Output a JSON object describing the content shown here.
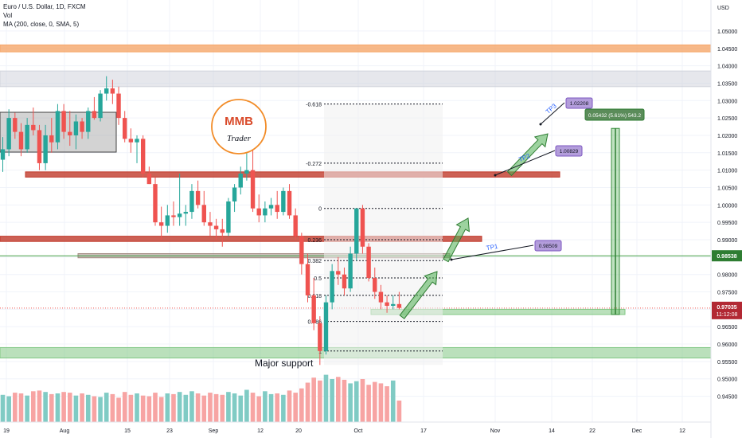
{
  "legend": {
    "symbol": "Euro / U.S. Dollar, 1D, FXCM",
    "volume": "Vol",
    "ma": "MA (200, close, 0, SMA, 5)"
  },
  "logo": {
    "brand": "MMB",
    "sub": "Trader"
  },
  "chart_data": {
    "type": "candlestick",
    "symbol": "Euro / U.S. Dollar",
    "interval": "1D",
    "ylabel": "USD",
    "ylim": [
      0.9425,
      1.0525
    ],
    "y_ticks": [
      "1.05000",
      "1.04500",
      "1.04000",
      "1.03500",
      "1.03000",
      "1.02500",
      "1.02000",
      "1.01500",
      "1.01000",
      "1.00500",
      "1.00000",
      "0.99500",
      "0.99000",
      "0.98500",
      "0.98000",
      "0.97500",
      "0.97000",
      "0.96500",
      "0.96000",
      "0.95500",
      "0.95000",
      "0.94500"
    ],
    "x_ticks": [
      "19",
      "Aug",
      "15",
      "23",
      "Sep",
      "12",
      "20",
      "Oct",
      "17",
      "Nov",
      "14",
      "22",
      "Dec",
      "12"
    ],
    "last_price": {
      "value": "0.97035",
      "timer": "11:12:08",
      "color": "#b22833"
    },
    "level_label": {
      "value": "0.98538",
      "color": "#2e7d32"
    },
    "candles": [
      {
        "o": 1.013,
        "h": 1.0195,
        "l": 1.0095,
        "c": 1.016
      },
      {
        "o": 1.016,
        "h": 1.0275,
        "l": 1.014,
        "c": 1.025
      },
      {
        "o": 1.025,
        "h": 1.0265,
        "l": 1.019,
        "c": 1.021
      },
      {
        "o": 1.021,
        "h": 1.0235,
        "l": 1.014,
        "c": 1.016
      },
      {
        "o": 1.016,
        "h": 1.025,
        "l": 1.015,
        "c": 1.023
      },
      {
        "o": 1.023,
        "h": 1.028,
        "l": 1.02,
        "c": 1.0215
      },
      {
        "o": 1.0215,
        "h": 1.023,
        "l": 1.01,
        "c": 1.012
      },
      {
        "o": 1.012,
        "h": 1.023,
        "l": 1.01,
        "c": 1.02
      },
      {
        "o": 1.02,
        "h": 1.025,
        "l": 1.015,
        "c": 1.018
      },
      {
        "o": 1.018,
        "h": 1.029,
        "l": 1.016,
        "c": 1.027
      },
      {
        "o": 1.027,
        "h": 1.029,
        "l": 1.019,
        "c": 1.021
      },
      {
        "o": 1.021,
        "h": 1.027,
        "l": 1.017,
        "c": 1.02
      },
      {
        "o": 1.02,
        "h": 1.026,
        "l": 1.016,
        "c": 1.024
      },
      {
        "o": 1.024,
        "h": 1.025,
        "l": 1.019,
        "c": 1.021
      },
      {
        "o": 1.021,
        "h": 1.028,
        "l": 1.019,
        "c": 1.027
      },
      {
        "o": 1.027,
        "h": 1.031,
        "l": 1.0245,
        "c": 1.025
      },
      {
        "o": 1.025,
        "h": 1.033,
        "l": 1.024,
        "c": 1.032
      },
      {
        "o": 1.032,
        "h": 1.037,
        "l": 1.03,
        "c": 1.0335
      },
      {
        "o": 1.0335,
        "h": 1.036,
        "l": 1.029,
        "c": 1.032
      },
      {
        "o": 1.032,
        "h": 1.034,
        "l": 1.023,
        "c": 1.025
      },
      {
        "o": 1.025,
        "h": 1.027,
        "l": 1.018,
        "c": 1.019
      },
      {
        "o": 1.019,
        "h": 1.022,
        "l": 1.015,
        "c": 1.018
      },
      {
        "o": 1.018,
        "h": 1.02,
        "l": 1.012,
        "c": 1.019
      },
      {
        "o": 1.019,
        "h": 1.02,
        "l": 1.008,
        "c": 1.009
      },
      {
        "o": 1.009,
        "h": 1.011,
        "l": 1.006,
        "c": 1.006
      },
      {
        "o": 1.006,
        "h": 1.008,
        "l": 0.994,
        "c": 0.995
      },
      {
        "o": 0.995,
        "h": 0.9995,
        "l": 0.99,
        "c": 0.994
      },
      {
        "o": 0.994,
        "h": 1.0,
        "l": 0.992,
        "c": 0.997
      },
      {
        "o": 0.997,
        "h": 1.001,
        "l": 0.994,
        "c": 0.9965
      },
      {
        "o": 0.9965,
        "h": 1.009,
        "l": 0.994,
        "c": 0.9975
      },
      {
        "o": 0.9975,
        "h": 1.0,
        "l": 0.994,
        "c": 0.998
      },
      {
        "o": 0.998,
        "h": 1.006,
        "l": 0.996,
        "c": 1.004
      },
      {
        "o": 1.004,
        "h": 1.007,
        "l": 0.999,
        "c": 1.0
      },
      {
        "o": 1.0,
        "h": 1.004,
        "l": 0.994,
        "c": 0.995
      },
      {
        "o": 0.995,
        "h": 0.998,
        "l": 0.991,
        "c": 0.994
      },
      {
        "o": 0.994,
        "h": 0.996,
        "l": 0.99,
        "c": 0.993
      },
      {
        "o": 0.993,
        "h": 0.996,
        "l": 0.988,
        "c": 0.992
      },
      {
        "o": 0.992,
        "h": 1.002,
        "l": 0.991,
        "c": 1.001
      },
      {
        "o": 1.001,
        "h": 1.006,
        "l": 0.998,
        "c": 1.005
      },
      {
        "o": 1.005,
        "h": 1.011,
        "l": 1.003,
        "c": 1.009
      },
      {
        "o": 1.009,
        "h": 1.02,
        "l": 1.007,
        "c": 1.01
      },
      {
        "o": 1.01,
        "h": 1.017,
        "l": 0.998,
        "c": 0.999
      },
      {
        "o": 0.999,
        "h": 1.003,
        "l": 0.995,
        "c": 0.997
      },
      {
        "o": 0.997,
        "h": 1.001,
        "l": 0.995,
        "c": 0.999
      },
      {
        "o": 0.999,
        "h": 1.002,
        "l": 0.997,
        "c": 1.0
      },
      {
        "o": 1.0,
        "h": 1.004,
        "l": 0.996,
        "c": 0.998
      },
      {
        "o": 0.998,
        "h": 1.005,
        "l": 0.997,
        "c": 1.004
      },
      {
        "o": 1.004,
        "h": 1.006,
        "l": 0.996,
        "c": 0.997
      },
      {
        "o": 0.997,
        "h": 0.999,
        "l": 0.99,
        "c": 0.991
      },
      {
        "o": 0.991,
        "h": 0.992,
        "l": 0.98,
        "c": 0.983
      },
      {
        "o": 0.983,
        "h": 0.986,
        "l": 0.972,
        "c": 0.974
      },
      {
        "o": 0.974,
        "h": 0.979,
        "l": 0.964,
        "c": 0.966
      },
      {
        "o": 0.966,
        "h": 0.968,
        "l": 0.954,
        "c": 0.958
      },
      {
        "o": 0.958,
        "h": 0.974,
        "l": 0.957,
        "c": 0.972
      },
      {
        "o": 0.972,
        "h": 0.983,
        "l": 0.97,
        "c": 0.981
      },
      {
        "o": 0.981,
        "h": 0.985,
        "l": 0.977,
        "c": 0.98
      },
      {
        "o": 0.98,
        "h": 0.982,
        "l": 0.974,
        "c": 0.976
      },
      {
        "o": 0.976,
        "h": 0.988,
        "l": 0.975,
        "c": 0.986
      },
      {
        "o": 0.986,
        "h": 0.999,
        "l": 0.984,
        "c": 0.999
      },
      {
        "o": 0.999,
        "h": 1.0,
        "l": 0.986,
        "c": 0.988
      },
      {
        "o": 0.988,
        "h": 0.989,
        "l": 0.978,
        "c": 0.979
      },
      {
        "o": 0.979,
        "h": 0.982,
        "l": 0.973,
        "c": 0.975
      },
      {
        "o": 0.975,
        "h": 0.977,
        "l": 0.97,
        "c": 0.972
      },
      {
        "o": 0.972,
        "h": 0.974,
        "l": 0.969,
        "c": 0.971
      },
      {
        "o": 0.971,
        "h": 0.974,
        "l": 0.97,
        "c": 0.9715
      },
      {
        "o": 0.9715,
        "h": 0.975,
        "l": 0.97,
        "c": 0.9704
      }
    ],
    "volume": [
      38,
      36,
      41,
      40,
      37,
      43,
      44,
      42,
      39,
      40,
      42,
      41,
      37,
      40,
      38,
      36,
      35,
      41,
      39,
      34,
      42,
      38,
      40,
      37,
      36,
      41,
      35,
      40,
      39,
      42,
      38,
      43,
      40,
      37,
      41,
      39,
      38,
      42,
      40,
      37,
      45,
      41,
      36,
      43,
      39,
      40,
      38,
      44,
      41,
      47,
      55,
      62,
      58,
      66,
      60,
      63,
      59,
      54,
      57,
      60,
      52,
      56,
      54,
      50,
      58,
      30
    ],
    "fib_levels": [
      {
        "label": "-0.618",
        "value": 1.029
      },
      {
        "label": "-0.272",
        "value": 1.012
      },
      {
        "label": "0",
        "value": 0.999
      },
      {
        "label": "0.236",
        "value": 0.99
      },
      {
        "label": "0.382",
        "value": 0.984
      },
      {
        "label": "0.5",
        "value": 0.979
      },
      {
        "label": "0.618",
        "value": 0.974
      },
      {
        "label": "0.786",
        "value": 0.9665
      },
      {
        "label": "1",
        "value": 0.958
      }
    ],
    "zones": [
      {
        "name": "orange-resistance",
        "from": 1.044,
        "to": 1.046,
        "color": "#f5a66a"
      },
      {
        "name": "grey-resistance",
        "from": 1.034,
        "to": 1.0385,
        "color": "#d1d4dc"
      },
      {
        "name": "red-level-1",
        "from": 1.008,
        "to": 1.0095,
        "color": "#c0392b"
      },
      {
        "name": "red-level-2",
        "from": 0.9895,
        "to": 0.991,
        "color": "#c0392b"
      },
      {
        "name": "target-level",
        "from": 0.9848,
        "to": 0.986,
        "color": "#a1887f"
      },
      {
        "name": "buy-zone",
        "from": 0.9685,
        "to": 0.97,
        "color": "#81c784"
      },
      {
        "name": "major-support",
        "from": 0.956,
        "to": 0.959,
        "color": "#81c784"
      }
    ],
    "major_support_label": "Major support",
    "targets": [
      {
        "name": "TP1",
        "value": "0.98509",
        "text_color": "#2962ff"
      },
      {
        "name": "TP2",
        "value": "1.00829",
        "text_color": "#2962ff"
      },
      {
        "name": "TP3",
        "value": "1.02208",
        "text_color": "#2962ff"
      }
    ],
    "measure_label": "0.05432 (5.61%) 543.2",
    "colors": {
      "up": "#26a69a",
      "down": "#ef5350",
      "up_vol": "#80cbc4",
      "down_vol": "#f7a4a3",
      "grid": "#f0f3fa"
    }
  }
}
